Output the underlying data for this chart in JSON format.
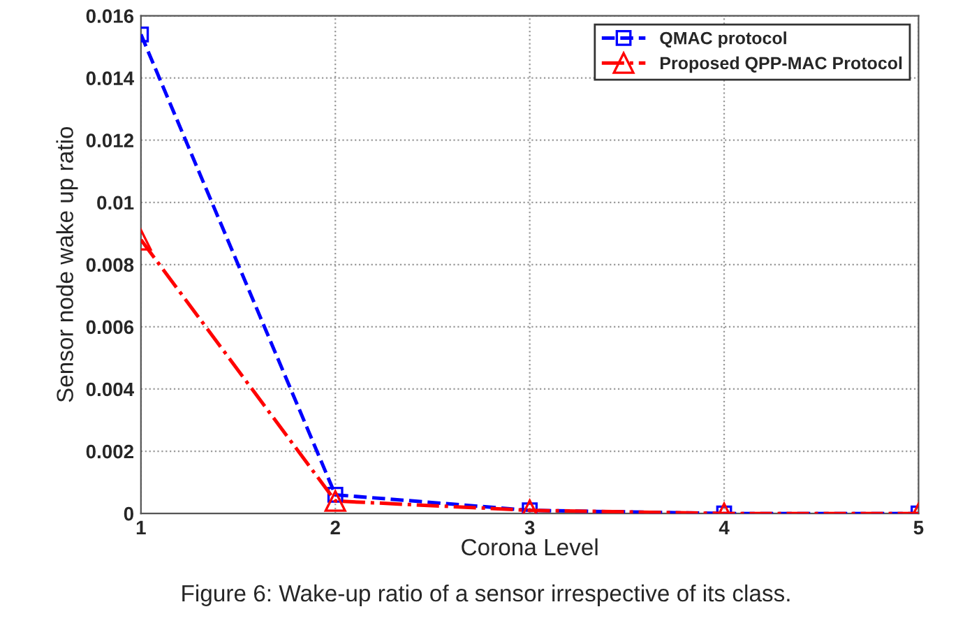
{
  "chart_data": {
    "type": "line",
    "xlabel": "Corona Level",
    "ylabel": "Sensor node wake up ratio",
    "x": [
      1,
      2,
      3,
      4,
      5
    ],
    "series": [
      {
        "name": "QMAC protocol",
        "color": "#0000ff",
        "marker": "square",
        "line_style": "dashed",
        "values": [
          0.0154,
          0.0006,
          0.0001,
          0.0,
          0.0
        ]
      },
      {
        "name": "Proposed QPP-MAC Protocol",
        "color": "#ff0000",
        "marker": "triangle",
        "line_style": "dashdot",
        "values": [
          0.0088,
          0.0004,
          0.0001,
          0.0,
          0.0
        ]
      }
    ],
    "xlim": [
      1,
      5
    ],
    "xticks": [
      1,
      2,
      3,
      4,
      5
    ],
    "ylim": [
      0,
      0.016
    ],
    "yticks": [
      {
        "value": 0,
        "label": "0"
      },
      {
        "value": 0.002,
        "label": "0.002"
      },
      {
        "value": 0.004,
        "label": "0.004"
      },
      {
        "value": 0.006,
        "label": "0.006"
      },
      {
        "value": 0.008,
        "label": "0.008"
      },
      {
        "value": 0.01,
        "label": "0.01"
      },
      {
        "value": 0.012,
        "label": "0.012"
      },
      {
        "value": 0.014,
        "label": "0.014"
      },
      {
        "value": 0.016,
        "label": "0.016"
      }
    ],
    "grid": true,
    "legend": "top right",
    "annotations": [
      "Figure 6: Wake-up ratio of a sensor irrespective of its class."
    ]
  }
}
